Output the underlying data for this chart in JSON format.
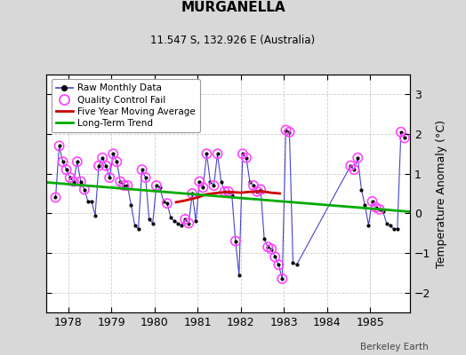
{
  "title": "MURGANELLA",
  "subtitle": "11.547 S, 132.926 E (Australia)",
  "ylabel": "Temperature Anomaly (°C)",
  "credit": "Berkeley Earth",
  "background_color": "#d8d8d8",
  "plot_background": "#ffffff",
  "ylim": [
    -2.5,
    3.5
  ],
  "xlim": [
    1977.5,
    1985.92
  ],
  "xticks": [
    1978,
    1979,
    1980,
    1981,
    1982,
    1983,
    1984,
    1985
  ],
  "yticks": [
    -2,
    -1,
    0,
    1,
    2,
    3
  ],
  "raw_x": [
    1977.708,
    1977.792,
    1977.875,
    1977.958,
    1978.042,
    1978.125,
    1978.208,
    1978.292,
    1978.375,
    1978.458,
    1978.542,
    1978.625,
    1978.708,
    1978.792,
    1978.875,
    1978.958,
    1979.042,
    1979.125,
    1979.208,
    1979.292,
    1979.375,
    1979.458,
    1979.542,
    1979.625,
    1979.708,
    1979.792,
    1979.875,
    1979.958,
    1980.042,
    1980.125,
    1980.208,
    1980.292,
    1980.375,
    1980.458,
    1980.542,
    1980.625,
    1980.708,
    1980.792,
    1980.875,
    1980.958,
    1981.042,
    1981.125,
    1981.208,
    1981.292,
    1981.375,
    1981.458,
    1981.542,
    1981.625,
    1981.708,
    1981.792,
    1981.875,
    1981.958,
    1982.042,
    1982.125,
    1982.208,
    1982.292,
    1982.375,
    1982.458,
    1982.542,
    1982.625,
    1982.708,
    1982.792,
    1982.875,
    1982.958,
    1983.042,
    1983.125,
    1983.208,
    1983.292,
    1984.542,
    1984.625,
    1984.708,
    1984.792,
    1984.875,
    1984.958,
    1985.042,
    1985.125,
    1985.208,
    1985.292,
    1985.375,
    1985.458,
    1985.542,
    1985.625,
    1985.708,
    1985.792
  ],
  "raw_y": [
    0.4,
    1.7,
    1.3,
    1.1,
    0.9,
    0.8,
    1.3,
    0.8,
    0.6,
    0.3,
    0.3,
    -0.05,
    1.2,
    1.4,
    1.2,
    0.9,
    1.5,
    1.3,
    0.8,
    0.7,
    0.7,
    0.2,
    -0.3,
    -0.4,
    1.1,
    0.9,
    -0.15,
    -0.25,
    0.7,
    0.65,
    0.3,
    0.25,
    -0.1,
    -0.2,
    -0.25,
    -0.3,
    -0.15,
    -0.25,
    0.5,
    -0.2,
    0.8,
    0.65,
    1.5,
    0.8,
    0.7,
    1.5,
    0.8,
    0.55,
    0.55,
    0.45,
    -0.7,
    -1.55,
    1.5,
    1.4,
    0.8,
    0.7,
    0.55,
    0.6,
    -0.65,
    -0.85,
    -0.9,
    -1.1,
    -1.3,
    -1.65,
    2.1,
    2.05,
    -1.25,
    -1.3,
    1.2,
    1.1,
    1.4,
    0.6,
    0.2,
    -0.3,
    0.3,
    0.15,
    0.1,
    0.05,
    -0.25,
    -0.3,
    -0.4,
    -0.4,
    2.05,
    1.9
  ],
  "qc_fail_x": [
    1977.708,
    1977.792,
    1977.875,
    1977.958,
    1978.042,
    1978.125,
    1978.208,
    1978.292,
    1978.375,
    1978.708,
    1978.792,
    1978.875,
    1978.958,
    1979.042,
    1979.125,
    1979.208,
    1979.292,
    1979.375,
    1979.708,
    1979.792,
    1980.042,
    1980.292,
    1980.708,
    1980.792,
    1980.875,
    1981.042,
    1981.125,
    1981.208,
    1981.375,
    1981.458,
    1981.625,
    1981.708,
    1981.875,
    1982.042,
    1982.125,
    1982.292,
    1982.375,
    1982.458,
    1982.625,
    1982.708,
    1982.792,
    1982.875,
    1982.958,
    1983.042,
    1983.125,
    1984.542,
    1984.625,
    1984.708,
    1985.042,
    1985.125,
    1985.208,
    1985.708,
    1985.792
  ],
  "qc_fail_y": [
    0.4,
    1.7,
    1.3,
    1.1,
    0.9,
    0.8,
    1.3,
    0.8,
    0.6,
    1.2,
    1.4,
    1.2,
    0.9,
    1.5,
    1.3,
    0.8,
    0.7,
    0.7,
    1.1,
    0.9,
    0.7,
    0.25,
    -0.15,
    -0.25,
    0.5,
    0.8,
    0.65,
    1.5,
    0.7,
    1.5,
    0.55,
    0.55,
    -0.7,
    1.5,
    1.4,
    0.7,
    0.55,
    0.6,
    -0.85,
    -0.9,
    -1.1,
    -1.3,
    -1.65,
    2.1,
    2.05,
    1.2,
    1.1,
    1.4,
    0.3,
    0.15,
    0.1,
    2.05,
    1.9
  ],
  "moving_avg_x": [
    1980.5,
    1980.7,
    1981.0,
    1981.2,
    1981.5,
    1981.7,
    1982.0,
    1982.2,
    1982.5,
    1982.7,
    1982.9
  ],
  "moving_avg_y": [
    0.28,
    0.32,
    0.4,
    0.48,
    0.52,
    0.54,
    0.52,
    0.54,
    0.55,
    0.52,
    0.5
  ],
  "trend_x": [
    1977.5,
    1985.92
  ],
  "trend_y": [
    0.78,
    0.04
  ],
  "line_color": "#4444cc",
  "dot_color": "#000000",
  "qc_color": "#ff44ff",
  "moving_avg_color": "#cc0000",
  "trend_color": "#00aa00",
  "figsize": [
    5.24,
    4.0
  ],
  "dpi": 100
}
